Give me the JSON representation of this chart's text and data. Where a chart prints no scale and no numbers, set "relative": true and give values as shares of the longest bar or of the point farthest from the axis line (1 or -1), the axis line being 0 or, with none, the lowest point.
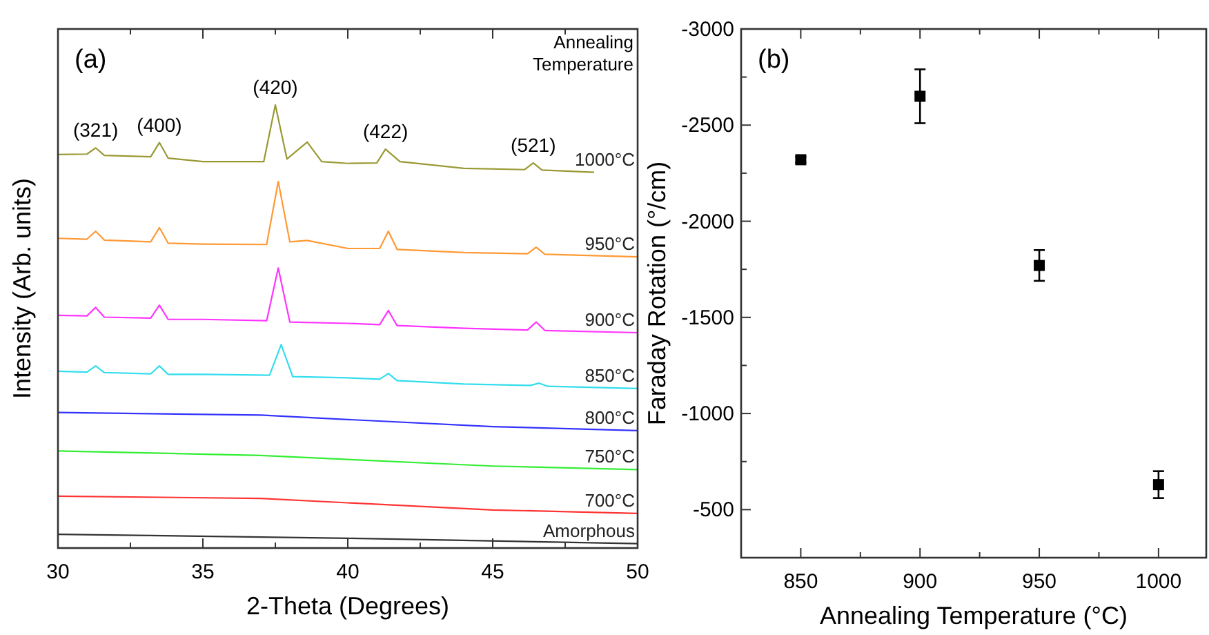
{
  "chart_data": [
    {
      "type": "line",
      "relative": true,
      "xlabel": "2-Theta (Degrees)",
      "ylabel": "Intensity (Arb. units)",
      "legend_title": "Annealing Temperature",
      "legend": false,
      "xlim": [
        30,
        50
      ],
      "xticks": [
        30,
        {
          "value": 32.5,
          "label": null
        },
        35,
        {
          "value": 37.5,
          "label": null
        },
        40,
        {
          "value": 42.5,
          "label": null
        },
        45,
        {
          "value": 47.5,
          "label": null
        },
        50
      ],
      "annotations": [
        "(a)",
        {
          "text": "(321)",
          "x": 31.3,
          "y": 0.903
        },
        {
          "text": "(400)",
          "x": 33.5,
          "y": 0.915
        },
        {
          "text": "(420)",
          "x": 37.5,
          "y": 1.0
        },
        {
          "text": "(422)",
          "x": 41.3,
          "y": 0.9
        },
        {
          "text": "(521)",
          "x": 46.4,
          "y": 0.869
        }
      ],
      "series": [
        {
          "name": "1000°C",
          "color": "#999933",
          "x": [
            30,
            31.0,
            31.3,
            31.6,
            33.2,
            33.5,
            33.8,
            35,
            37.1,
            37.5,
            37.9,
            38.6,
            39.1,
            40,
            41.0,
            41.3,
            41.8,
            44,
            46.1,
            46.4,
            46.7,
            48.5
          ],
          "values": [
            0.888,
            0.889,
            0.903,
            0.886,
            0.883,
            0.915,
            0.88,
            0.872,
            0.872,
            1.0,
            0.878,
            0.916,
            0.872,
            0.868,
            0.869,
            0.9,
            0.872,
            0.857,
            0.854,
            0.869,
            0.853,
            0.848
          ]
        },
        {
          "name": "950°C",
          "color": "#ff9933",
          "x": [
            30,
            31.0,
            31.3,
            31.6,
            33.2,
            33.5,
            33.8,
            35,
            37.2,
            37.6,
            38.0,
            38.6,
            40,
            41.1,
            41.4,
            41.7,
            44,
            46.2,
            46.5,
            46.8,
            50
          ],
          "values": [
            0.699,
            0.697,
            0.715,
            0.695,
            0.691,
            0.723,
            0.688,
            0.686,
            0.685,
            0.827,
            0.691,
            0.694,
            0.676,
            0.676,
            0.715,
            0.674,
            0.667,
            0.664,
            0.679,
            0.663,
            0.657
          ]
        },
        {
          "name": "900°C",
          "color": "#ff33ff",
          "x": [
            30,
            31.0,
            31.3,
            31.6,
            33.2,
            33.5,
            33.8,
            35,
            37.2,
            37.6,
            38.0,
            40,
            41.1,
            41.4,
            41.7,
            44,
            46.2,
            46.5,
            46.8,
            50
          ],
          "values": [
            0.525,
            0.524,
            0.543,
            0.521,
            0.519,
            0.548,
            0.516,
            0.516,
            0.513,
            0.632,
            0.51,
            0.507,
            0.504,
            0.536,
            0.502,
            0.496,
            0.492,
            0.51,
            0.491,
            0.486
          ]
        },
        {
          "name": "850°C",
          "color": "#33ddee",
          "x": [
            30,
            31.0,
            31.3,
            31.6,
            33.2,
            33.5,
            33.8,
            35,
            37.3,
            37.7,
            38.1,
            40,
            41.1,
            41.4,
            41.7,
            44,
            46.3,
            46.6,
            46.9,
            50
          ],
          "values": [
            0.399,
            0.397,
            0.411,
            0.396,
            0.393,
            0.411,
            0.392,
            0.392,
            0.39,
            0.459,
            0.387,
            0.384,
            0.381,
            0.394,
            0.378,
            0.37,
            0.367,
            0.372,
            0.365,
            0.36
          ]
        },
        {
          "name": "800°C",
          "color": "#3333ff",
          "x": [
            30,
            37,
            40,
            45,
            50
          ],
          "values": [
            0.306,
            0.3,
            0.29,
            0.274,
            0.265
          ]
        },
        {
          "name": "750°C",
          "color": "#33ee33",
          "x": [
            30,
            37,
            40,
            45,
            50
          ],
          "values": [
            0.219,
            0.209,
            0.2,
            0.185,
            0.177
          ]
        },
        {
          "name": "700°C",
          "color": "#ff3333",
          "x": [
            30,
            37,
            40,
            45,
            50
          ],
          "values": [
            0.117,
            0.112,
            0.102,
            0.086,
            0.078
          ]
        },
        {
          "name": "Amorphous",
          "color": "#333333",
          "x": [
            30,
            40,
            50
          ],
          "values": [
            0.031,
            0.022,
            0.01
          ]
        }
      ]
    },
    {
      "type": "scatter",
      "marker": "square",
      "xlabel": "Annealing Temperature (°C)",
      "ylabel": "Faraday Rotation (°/cm)",
      "annotations": [
        "(b)"
      ],
      "xlim": [
        825,
        1020
      ],
      "xticks": [
        850,
        {
          "value": 875,
          "label": null
        },
        900,
        {
          "value": 925,
          "label": null
        },
        950,
        {
          "value": 975,
          "label": null
        },
        1000
      ],
      "ylim": [
        -250,
        -3000
      ],
      "yticks": [
        -3000,
        {
          "value": -2750,
          "label": null
        },
        -2500,
        {
          "value": -2250,
          "label": null
        },
        -2000,
        {
          "value": -1750,
          "label": null
        },
        -1500,
        {
          "value": -1250,
          "label": null
        },
        -1000,
        {
          "value": -750,
          "label": null
        },
        -500
      ],
      "series": [
        {
          "color": "#000000",
          "x": [
            850,
            900,
            950,
            1000
          ],
          "values": [
            -2320,
            -2650,
            -1770,
            -630
          ],
          "errors": [
            15,
            140,
            80,
            70
          ]
        }
      ]
    }
  ]
}
